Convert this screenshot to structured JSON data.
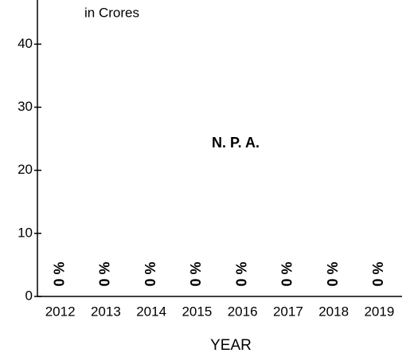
{
  "chart_data": {
    "type": "bar",
    "title": "N. P. A.",
    "y_label": "in Crores",
    "x_label": "YEAR",
    "categories": [
      "2012",
      "2013",
      "2014",
      "2015",
      "2016",
      "2017",
      "2018",
      "2019"
    ],
    "values": [
      0,
      0,
      0,
      0,
      0,
      0,
      0,
      0
    ],
    "value_labels": [
      "0 %",
      "0 %",
      "0 %",
      "0 %",
      "0 %",
      "0 %",
      "0 %",
      "0 %"
    ],
    "color": "#000000",
    "ylim": [
      0,
      47
    ],
    "yticks": [
      0,
      10,
      20,
      30,
      40
    ],
    "grid": false
  }
}
